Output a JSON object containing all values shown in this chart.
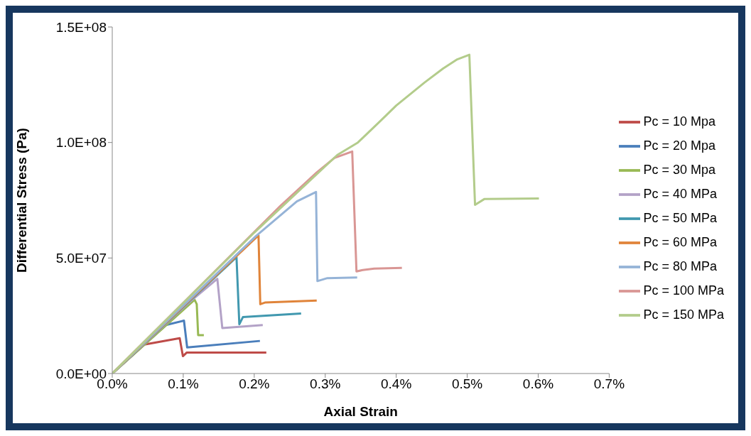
{
  "chart_data": {
    "type": "line",
    "xlabel": "Axial Strain",
    "ylabel": "Differential Stress  (Pa)",
    "xlim": [
      0,
      0.7
    ],
    "xticks": [
      {
        "value": 0,
        "label": "0.0%"
      },
      {
        "value": 0.1,
        "label": "0.1%"
      },
      {
        "value": 0.2,
        "label": "0.2%"
      },
      {
        "value": 0.3,
        "label": "0.3%"
      },
      {
        "value": 0.4,
        "label": "0.4%"
      },
      {
        "value": 0.5,
        "label": "0.5%"
      },
      {
        "value": 0.6,
        "label": "0.6%"
      },
      {
        "value": 0.7,
        "label": "0.7%"
      }
    ],
    "ylim": [
      0,
      150000000
    ],
    "yticks": [
      {
        "value": 0,
        "label": "0.0E+00"
      },
      {
        "value": 50000000,
        "label": "5.0E+07"
      },
      {
        "value": 100000000,
        "label": "1.0E+08"
      },
      {
        "value": 150000000,
        "label": "1.5E+08"
      }
    ],
    "grid": false,
    "legend": "right",
    "marker": "none",
    "line_style": "solid",
    "series": [
      {
        "name": "Pc = 10 Mpa",
        "color": "#be4b48",
        "x": [
          0,
          0.045,
          0.095,
          0.0995,
          0.105,
          0.217
        ],
        "values": [
          0,
          12500000,
          15300000,
          7500000,
          9100000,
          9100000
        ]
      },
      {
        "name": "Pc = 20 Mpa",
        "color": "#4a7ebb",
        "x": [
          0,
          0.0755,
          0.101,
          0.1055,
          0.208
        ],
        "values": [
          0,
          21000000,
          22900000,
          11300000,
          14100000
        ]
      },
      {
        "name": "Pc = 30 Mpa",
        "color": "#98b954",
        "x": [
          0,
          0.116,
          0.119,
          0.121,
          0.129
        ],
        "values": [
          0,
          31900000,
          30000000,
          16600000,
          16600000
        ]
      },
      {
        "name": "Pc = 40 MPa",
        "color": "#b3a2c7",
        "x": [
          0,
          0.108,
          0.148,
          0.155,
          0.212
        ],
        "values": [
          0,
          30700000,
          41000000,
          19700000,
          21000000
        ]
      },
      {
        "name": "Pc = 50 MPa",
        "color": "#4198af",
        "x": [
          0,
          0.175,
          0.179,
          0.184,
          0.266
        ],
        "values": [
          0,
          50400000,
          21300000,
          24400000,
          26000000
        ]
      },
      {
        "name": "Pc = 60 MPa",
        "color": "#e0843a",
        "x": [
          0,
          0.206,
          0.2085,
          0.215,
          0.288
        ],
        "values": [
          0,
          59800000,
          30000000,
          30700000,
          31600000
        ]
      },
      {
        "name": "Pc = 80 MPa",
        "color": "#95b3d7",
        "x": [
          0,
          0.2025,
          0.26,
          0.287,
          0.289,
          0.303,
          0.345
        ],
        "values": [
          0,
          59500000,
          74500000,
          78600000,
          40000000,
          41300000,
          41600000
        ]
      },
      {
        "name": "Pc = 100 MPa",
        "color": "#d99694",
        "x": [
          0,
          0.237,
          0.288,
          0.313,
          0.338,
          0.344,
          0.353,
          0.369,
          0.408
        ],
        "values": [
          0,
          72600000,
          87000000,
          93300000,
          96100000,
          44200000,
          44800000,
          45400000,
          45700000
        ]
      },
      {
        "name": "Pc = 150 MPa",
        "color": "#b3cc8b",
        "x": [
          0,
          0.2,
          0.317,
          0.346,
          0.38,
          0.4,
          0.44,
          0.466,
          0.486,
          0.503,
          0.511,
          0.524,
          0.601
        ],
        "values": [
          0,
          61000000,
          94600000,
          100000000,
          110000000,
          116000000,
          126000000,
          132000000,
          136000000,
          138000000,
          73000000,
          75500000,
          75800000
        ]
      }
    ]
  }
}
